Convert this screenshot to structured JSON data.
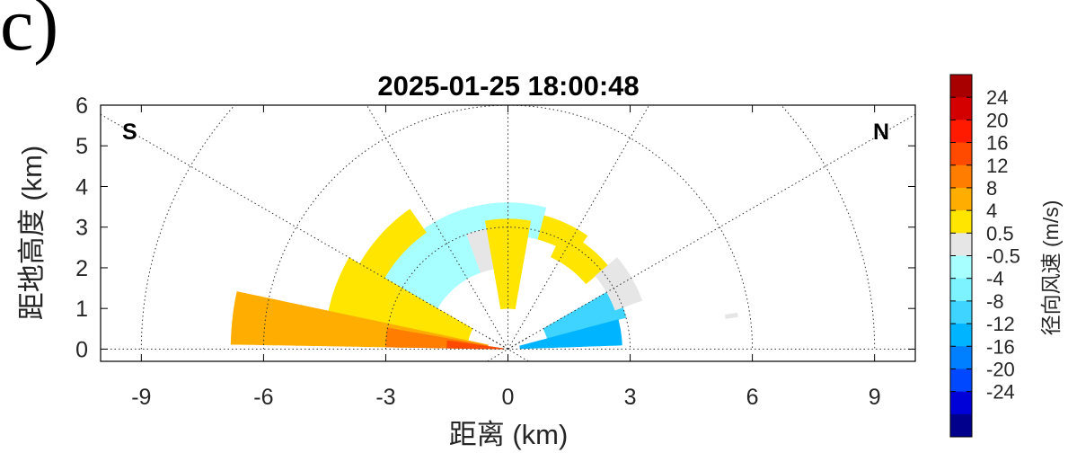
{
  "panel_label": "c)",
  "chart_data": {
    "type": "heatmap",
    "subtype": "RHI radar scan (polar sector plot)",
    "title": "2025-01-25 18:00:48",
    "xlabel": "距离 (km)",
    "ylabel": "距地高度 (km)",
    "xlim": [
      -10,
      10
    ],
    "ylim": [
      -0.3,
      6
    ],
    "xticks": [
      -9,
      -6,
      -3,
      0,
      3,
      6,
      9
    ],
    "yticks": [
      0,
      1,
      2,
      3,
      4,
      5,
      6
    ],
    "direction_left": "S",
    "direction_right": "N",
    "polar_grid": {
      "range_rings_km": [
        3,
        6,
        9
      ],
      "spoke_angles_deg": [
        0,
        30,
        60,
        90,
        120,
        150,
        180
      ],
      "style": "dotted"
    },
    "colorbar": {
      "label": "径向风速 (m/s)",
      "ticks": [
        "24",
        "20",
        "16",
        "12",
        "8",
        "4",
        "0.5",
        "-0.5",
        "-4",
        "-8",
        "-12",
        "-16",
        "-20",
        "-24"
      ],
      "colors": [
        "#a80000",
        "#d40000",
        "#ff1a00",
        "#ff4a00",
        "#ff7d00",
        "#ffae00",
        "#ffe500",
        "#e6e6e6",
        "#a8ffff",
        "#7df3ff",
        "#3ed4ff",
        "#00b4ff",
        "#0080ff",
        "#0048ff",
        "#0000d8",
        "#00008c"
      ]
    },
    "regions": [
      {
        "velocity_class": "0.5 to 4",
        "r_km": [
          2.8,
          3.4
        ],
        "angle_deg": [
          55,
          75
        ]
      },
      {
        "velocity_class": "-4 to -0.5",
        "r_km": [
          2.8,
          3.6
        ],
        "angle_deg": [
          75,
          120
        ]
      },
      {
        "velocity_class": "-0.5 to 0.5",
        "r_km": [
          2.0,
          3.0
        ],
        "angle_deg": [
          80,
          110
        ]
      },
      {
        "velocity_class": "0.5 to 4",
        "r_km": [
          1.0,
          3.2
        ],
        "angle_deg": [
          80,
          100
        ]
      },
      {
        "velocity_class": "0.5 to 4",
        "r_km": [
          2.5,
          3.2
        ],
        "angle_deg": [
          40,
          65
        ]
      },
      {
        "velocity_class": "-4 to -0.5",
        "r_km": [
          2.0,
          3.6
        ],
        "angle_deg": [
          110,
          150
        ]
      },
      {
        "velocity_class": "0.5 to 4",
        "r_km": [
          3.5,
          4.2
        ],
        "angle_deg": [
          125,
          150
        ]
      },
      {
        "velocity_class": "0.5 to 4",
        "r_km": [
          1.0,
          4.5
        ],
        "angle_deg": [
          150,
          168
        ]
      },
      {
        "velocity_class": "4 to 8",
        "r_km": [
          0.5,
          6.8
        ],
        "angle_deg": [
          168,
          179
        ]
      },
      {
        "velocity_class": "8 to 12",
        "r_km": [
          0.5,
          3.0
        ],
        "angle_deg": [
          170,
          179
        ]
      },
      {
        "velocity_class": "12 to 16",
        "r_km": [
          0.1,
          1.5
        ],
        "angle_deg": [
          172,
          179
        ]
      },
      {
        "velocity_class": "-8 to -4",
        "r_km": [
          1.0,
          3.0
        ],
        "angle_deg": [
          15,
          30
        ]
      },
      {
        "velocity_class": "-12 to -8",
        "r_km": [
          0.3,
          2.8
        ],
        "angle_deg": [
          2,
          15
        ]
      },
      {
        "velocity_class": "-0.5 to 0.5",
        "r_km": [
          2.8,
          3.5
        ],
        "angle_deg": [
          20,
          40
        ]
      },
      {
        "velocity_class": "-0.5 to 0.5",
        "r_km": [
          5.4,
          5.7
        ],
        "angle_deg": [
          8,
          9
        ]
      }
    ]
  }
}
